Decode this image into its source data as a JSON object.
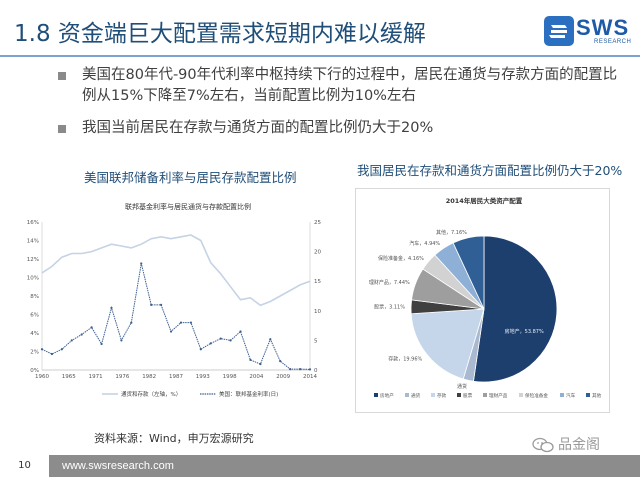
{
  "header": {
    "title": "1.8 资金端巨大配置需求短期内难以缓解",
    "logo_text": "SWS",
    "logo_sub": "RESEARCH"
  },
  "bullets": [
    "美国在80年代-90年代利率中枢持续下行的过程中，居民在通货与存款方面的配置比例从15%下降至7%左右，当前配置比例为10%左右",
    "我国当前居民在存款与通货方面的配置比例仍大于20%"
  ],
  "left_panel": {
    "subhead": "美国联邦储备利率与居民存款配置比例"
  },
  "right_panel": {
    "subhead": "我国居民在存款和通货方面配置比例仍大于20%"
  },
  "source": "资料来源：Wind，申万宏源研究",
  "footer": {
    "page": "10",
    "url": "www.swsresearch.com"
  },
  "watermark": "品金阁",
  "colors": {
    "brand": "#1f4e79",
    "line_series": "#c5d3e4",
    "fed_series": "#3b5f8f"
  },
  "chart_data": [
    {
      "type": "line",
      "title": "联邦基金利率与居民通货与存款配置比例",
      "x": [
        1960,
        1962,
        1964,
        1966,
        1968,
        1970,
        1972,
        1974,
        1976,
        1978,
        1980,
        1982,
        1984,
        1986,
        1988,
        1990,
        1992,
        1994,
        1996,
        1998,
        2000,
        2002,
        2004,
        2006,
        2008,
        2010,
        2012,
        2014
      ],
      "x_ticks": [
        "1960",
        "1965",
        "1971",
        "1976",
        "1982",
        "1987",
        "1993",
        "1998",
        "2004",
        "2009",
        "2014"
      ],
      "y_left_ticks": [
        "0%",
        "2%",
        "4%",
        "6%",
        "8%",
        "10%",
        "12%",
        "14%",
        "16%"
      ],
      "y_right_ticks": [
        "0",
        "5",
        "10",
        "15",
        "20",
        "25"
      ],
      "ylim_left": [
        0,
        16
      ],
      "ylim_right": [
        0,
        25
      ],
      "legend_position": "bottom",
      "series": [
        {
          "name": "通货和存款（左轴，%）",
          "axis": "left",
          "values": [
            10.5,
            11.2,
            12.2,
            12.6,
            12.6,
            12.8,
            13.2,
            13.6,
            13.4,
            13.2,
            13.6,
            14.2,
            14.4,
            14.2,
            14.4,
            14.6,
            14.0,
            11.6,
            10.4,
            9.0,
            7.6,
            7.8,
            7.0,
            7.4,
            8.0,
            8.6,
            9.2,
            9.6
          ]
        },
        {
          "name": "美国：联邦基金利率(日)",
          "axis": "right",
          "values": [
            3.5,
            2.7,
            3.5,
            5.0,
            6.0,
            7.2,
            4.4,
            10.5,
            5.0,
            8.0,
            18.0,
            11.0,
            11.0,
            6.5,
            8.0,
            8.0,
            3.5,
            4.5,
            5.3,
            5.0,
            6.5,
            1.7,
            1.0,
            5.2,
            1.5,
            0.15,
            0.15,
            0.1
          ]
        }
      ]
    },
    {
      "type": "pie",
      "title": "2014年居民大类资产配置",
      "slices": [
        {
          "label": "房地产",
          "value": 53.87,
          "text": "房地产，53.87%",
          "color": "#1d3f6e"
        },
        {
          "label": "通货",
          "value": 2.35,
          "text": "通货",
          "color": "#a8b9d0"
        },
        {
          "label": "存款",
          "value": 19.96,
          "text": "存款，19.96%",
          "color": "#c6d6ea"
        },
        {
          "label": "股票",
          "value": 3.11,
          "text": "股票，3.11%",
          "color": "#404040"
        },
        {
          "label": "理财产品",
          "value": 7.44,
          "text": "理财产品，7.44%",
          "color": "#9e9e9e"
        },
        {
          "label": "保险准备金",
          "value": 4.16,
          "text": "保险准备金，4.16%",
          "color": "#d2d2d2"
        },
        {
          "label": "汽车",
          "value": 4.94,
          "text": "汽车，4.94%",
          "color": "#8eb0d6"
        },
        {
          "label": "其他",
          "value": 7.16,
          "text": "其他，7.16%",
          "color": "#2f5f94"
        }
      ],
      "legend_position": "bottom"
    }
  ]
}
